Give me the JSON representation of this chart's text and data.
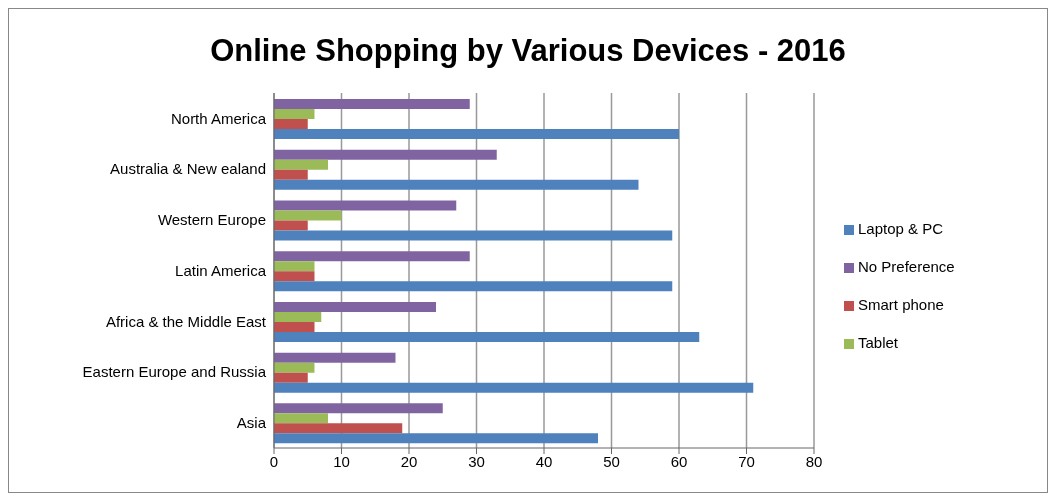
{
  "chart_data": {
    "type": "bar",
    "orientation": "horizontal",
    "title": "Online Shopping by Various Devices - 2016",
    "categories": [
      "North America",
      "Australia & New ealand",
      "Western Europe",
      "Latin America",
      "Africa & the Middle East",
      "Eastern Europe and Russia",
      "Asia"
    ],
    "series": [
      {
        "name": "Laptop & PC",
        "color": "#4f81bd",
        "values": [
          60,
          54,
          59,
          59,
          63,
          71,
          48
        ]
      },
      {
        "name": "Smart phone",
        "color": "#c0504d",
        "values": [
          5,
          5,
          5,
          6,
          6,
          5,
          19
        ]
      },
      {
        "name": "Tablet",
        "color": "#9bbb59",
        "values": [
          6,
          8,
          10,
          6,
          7,
          6,
          8
        ]
      },
      {
        "name": "No Preference",
        "color": "#8064a2",
        "values": [
          29,
          33,
          27,
          29,
          24,
          18,
          25
        ]
      }
    ],
    "xlim": [
      0,
      80
    ],
    "xticks": [
      0,
      10,
      20,
      30,
      40,
      50,
      60,
      70,
      80
    ],
    "grid": "x",
    "legend": "right"
  }
}
